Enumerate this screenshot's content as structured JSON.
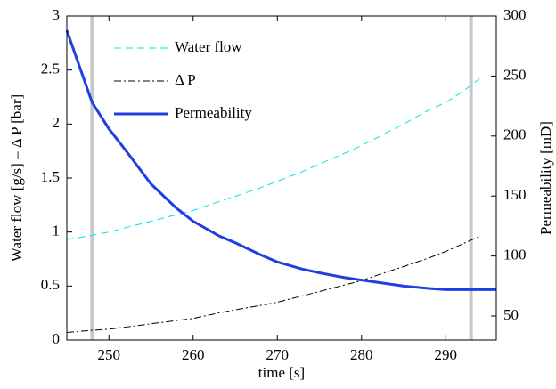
{
  "chart_data": {
    "type": "line",
    "xlabel": "time [s]",
    "ylabel": "Water flow [g/s] – Δ P [bar]",
    "y2label": "Permeability [mD]",
    "x": [
      245,
      248,
      250,
      252,
      255,
      258,
      260,
      263,
      265,
      268,
      270,
      273,
      275,
      278,
      280,
      283,
      285,
      288,
      290,
      292,
      294,
      296
    ],
    "series": [
      {
        "name": "Water flow",
        "color": "#00e5e5",
        "dash": "8 5",
        "width": 1,
        "values": [
          0.93,
          0.97,
          1.0,
          1.04,
          1.1,
          1.16,
          1.2,
          1.28,
          1.33,
          1.41,
          1.47,
          1.56,
          1.63,
          1.73,
          1.8,
          1.92,
          2.0,
          2.13,
          2.2,
          2.3,
          2.42,
          null
        ]
      },
      {
        "name": "Δ P",
        "color": "#000000",
        "dash": "8 3 2 3",
        "width": 1,
        "values": [
          0.07,
          0.09,
          0.1,
          0.12,
          0.15,
          0.18,
          0.2,
          0.25,
          0.28,
          0.32,
          0.35,
          0.41,
          0.45,
          0.51,
          0.55,
          0.63,
          0.68,
          0.76,
          0.82,
          0.89,
          0.96,
          null
        ]
      },
      {
        "name": "Permeability",
        "color": "#1f3fe0",
        "dash": "none",
        "width": 3,
        "axis": "y2",
        "values": [
          288,
          228,
          206,
          188,
          160,
          140,
          129,
          117,
          111,
          101,
          95,
          89,
          86,
          82,
          80,
          77,
          75,
          73,
          72,
          72,
          72,
          72
        ]
      }
    ],
    "vlines": {
      "color": "#c8c8c8",
      "x": [
        248,
        293
      ]
    },
    "xlim": [
      245,
      296
    ],
    "xticks": [
      250,
      260,
      270,
      280,
      290
    ],
    "ylim": [
      0,
      3
    ],
    "yticks": [
      0,
      0.5,
      1,
      1.5,
      2,
      2.5,
      3
    ],
    "y2lim": [
      30,
      300
    ],
    "y2ticks": [
      50,
      100,
      150,
      200,
      250,
      300
    ],
    "legend": "upper-left"
  }
}
